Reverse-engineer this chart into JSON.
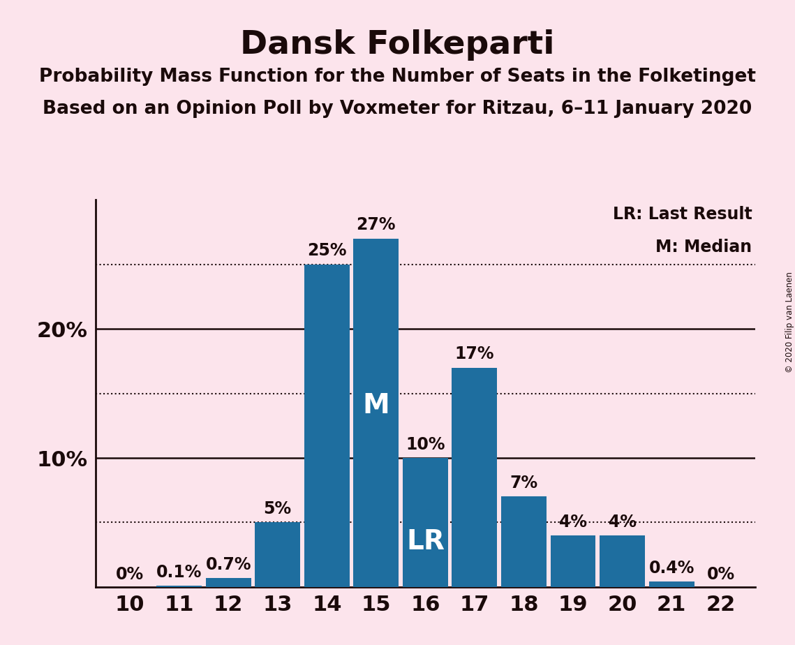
{
  "title": "Dansk Folkeparti",
  "subtitle1": "Probability Mass Function for the Number of Seats in the Folketinget",
  "subtitle2": "Based on an Opinion Poll by Voxmeter for Ritzau, 6–11 January 2020",
  "copyright": "© 2020 Filip van Laenen",
  "seats": [
    10,
    11,
    12,
    13,
    14,
    15,
    16,
    17,
    18,
    19,
    20,
    21,
    22
  ],
  "probabilities": [
    0.0,
    0.1,
    0.7,
    5.0,
    25.0,
    27.0,
    10.0,
    17.0,
    7.0,
    4.0,
    4.0,
    0.4,
    0.0
  ],
  "labels": [
    "0%",
    "0.1%",
    "0.7%",
    "5%",
    "25%",
    "27%",
    "10%",
    "17%",
    "7%",
    "4%",
    "4%",
    "0.4%",
    "0%"
  ],
  "bar_color": "#1e6e9f",
  "background_color": "#fce4ec",
  "text_color": "#1a0a0a",
  "lr_seat": 16,
  "median_seat": 15,
  "ylim_max": 30,
  "dotted_lines": [
    5,
    15,
    25
  ],
  "solid_lines": [
    10,
    20
  ],
  "legend_lr": "LR: Last Result",
  "legend_m": "M: Median",
  "title_fontsize": 34,
  "subtitle_fontsize": 19,
  "label_fontsize": 17,
  "axis_fontsize": 22,
  "ytick_fontsize": 22,
  "legend_fontsize": 17
}
